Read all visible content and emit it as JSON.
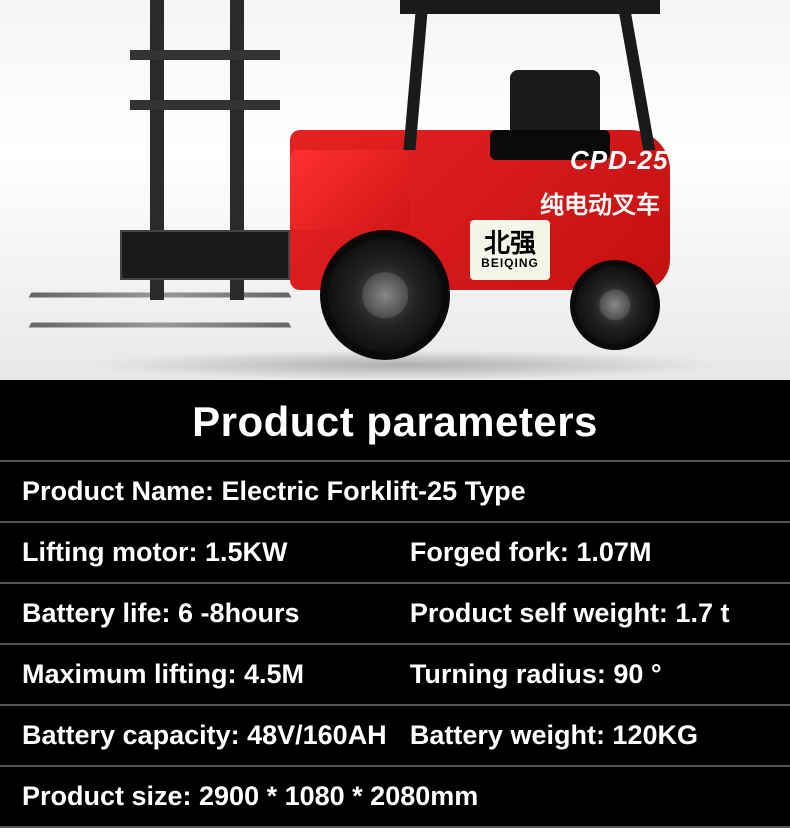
{
  "colors": {
    "panel_bg": "#000000",
    "panel_text": "#ffffff",
    "divider": "#555555",
    "forklift_body": "#e62222",
    "forklift_dark": "#1a1a1a"
  },
  "product_image": {
    "model_label": "CPD-25",
    "slogan": "纯电动叉车",
    "brand_cn": "北强",
    "brand_en": "BEIQING"
  },
  "parameters": {
    "title": "Product parameters",
    "rows": [
      {
        "type": "single",
        "left": "Product Name: Electric Forklift-25 Type"
      },
      {
        "type": "pair",
        "left": "Lifting motor: 1.5KW",
        "right": "Forged fork: 1.07M"
      },
      {
        "type": "pair",
        "left": "Battery life: 6 -8hours",
        "right": "Product self weight: 1.7 t"
      },
      {
        "type": "pair",
        "left": "Maximum lifting: 4.5M",
        "right": "Turning radius: 90 °"
      },
      {
        "type": "pair",
        "left": "Battery capacity: 48V/160AH",
        "right": "Battery weight: 120KG"
      },
      {
        "type": "single",
        "left": "Product size: 2900 * 1080 * 2080mm"
      }
    ]
  }
}
